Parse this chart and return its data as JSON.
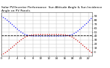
{
  "title": "Solar PV/Inverter Performance  Sun Altitude Angle & Sun Incidence Angle on PV Panels",
  "x_values": [
    0,
    1,
    2,
    3,
    4,
    5,
    6,
    7,
    8,
    9,
    10,
    11,
    12,
    13,
    14,
    15,
    16,
    17,
    18,
    19,
    20,
    21,
    22,
    23
  ],
  "blue_values": [
    90,
    84,
    76,
    67,
    58,
    50,
    44,
    41,
    40,
    40,
    40,
    40,
    40,
    40,
    40,
    40,
    40,
    41,
    44,
    50,
    58,
    67,
    76,
    88
  ],
  "red_values": [
    -8,
    -3,
    5,
    13,
    22,
    30,
    37,
    41,
    43,
    44,
    44,
    44,
    44,
    44,
    44,
    44,
    43,
    41,
    37,
    30,
    22,
    13,
    5,
    -4
  ],
  "blue_color": "#0000ff",
  "red_color": "#cc0000",
  "bg_color": "#ffffff",
  "ylim": [
    -10,
    100
  ],
  "ytick_values": [
    0,
    10,
    20,
    30,
    40,
    50,
    60,
    70,
    80,
    90
  ],
  "ytick_labels": [
    "0",
    "10",
    "20",
    "30",
    "40",
    "50",
    "60",
    "70",
    "80",
    "90"
  ],
  "xlim": [
    0,
    23
  ],
  "xtick_values": [
    0,
    2,
    4,
    6,
    8,
    10,
    12,
    14,
    16,
    18,
    20,
    22
  ],
  "xtick_labels": [
    "0",
    "2",
    "4",
    "6",
    "8",
    "10",
    "12",
    "14",
    "16",
    "18",
    "20",
    "22"
  ],
  "hline_y": 41,
  "hline_color": "#000000",
  "grid_color": "#bbbbbb",
  "title_fontsize": 3.2,
  "tick_fontsize": 2.8,
  "line_width": 0.9,
  "figsize": [
    1.6,
    1.0
  ],
  "dpi": 100
}
